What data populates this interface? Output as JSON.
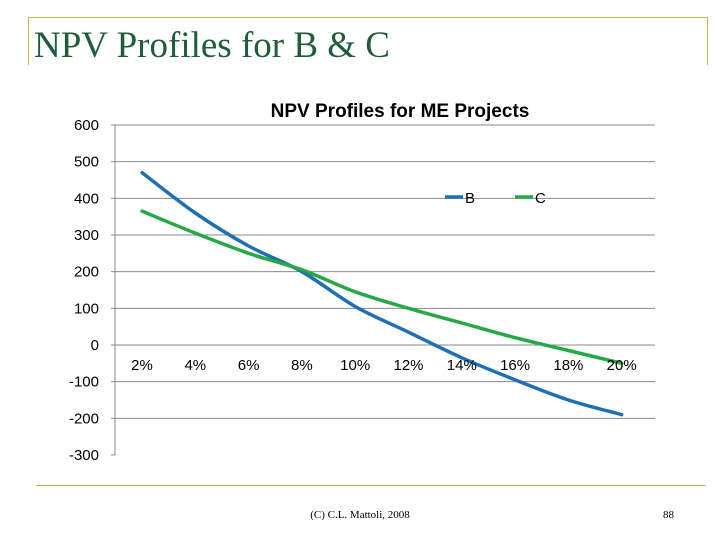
{
  "slide": {
    "title": "NPV Profiles for B & C",
    "footer": "(C) C.L. Mattoli, 2008",
    "page_number": "88"
  },
  "chart_data": {
    "type": "line",
    "title": "NPV Profiles for ME Projects",
    "xlabel": "",
    "ylabel": "",
    "x": [
      2,
      4,
      6,
      8,
      10,
      12,
      14,
      16,
      18,
      20
    ],
    "categories": [
      "2%",
      "4%",
      "6%",
      "8%",
      "10%",
      "12%",
      "14%",
      "16%",
      "18%",
      "20%"
    ],
    "ylim": [
      -300,
      600
    ],
    "yticks": [
      -300,
      -200,
      -100,
      0,
      100,
      200,
      300,
      400,
      500,
      600
    ],
    "legend_position": "top-right",
    "grid": true,
    "series": [
      {
        "name": "B",
        "color": "#1f6fb4",
        "values": [
          470,
          360,
          270,
          200,
          105,
          35,
          -35,
          -95,
          -150,
          -190
        ]
      },
      {
        "name": "C",
        "color": "#25a845",
        "values": [
          365,
          305,
          250,
          205,
          145,
          100,
          60,
          20,
          -15,
          -50
        ]
      }
    ]
  }
}
